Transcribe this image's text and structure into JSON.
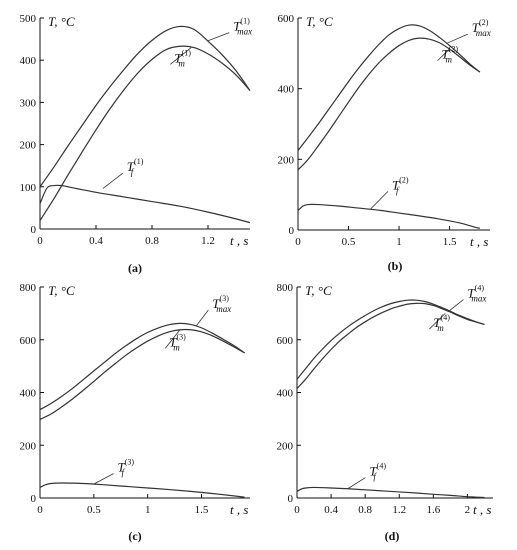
{
  "chart_data": [
    {
      "type": "line",
      "caption": "(a)",
      "ylabel": "T, °C",
      "xlabel": "t , s",
      "xlim": [
        0,
        1.5
      ],
      "ylim": [
        0,
        500
      ],
      "xticks": [
        0,
        0.4,
        0.8,
        1.2
      ],
      "xtick_labels": [
        "0",
        "0.4",
        "0.8",
        "1.2"
      ],
      "yticks": [
        0,
        100,
        200,
        300,
        400,
        500
      ],
      "ytick_labels": [
        "0",
        "100",
        "200",
        "300",
        "400",
        "500"
      ],
      "series": [
        {
          "name": "T_max^(1)",
          "base": "T",
          "sub": "max",
          "sup": "(1)",
          "x": [
            0,
            0.1,
            0.2,
            0.3,
            0.4,
            0.5,
            0.6,
            0.7,
            0.8,
            0.9,
            1.0,
            1.1,
            1.2,
            1.3,
            1.4,
            1.5
          ],
          "y": [
            100,
            147,
            197,
            245,
            293,
            337,
            378,
            416,
            447,
            470,
            480,
            473,
            445,
            413,
            375,
            328
          ]
        },
        {
          "name": "T_m^(1)",
          "base": "T",
          "sub": "m",
          "sup": "(1)",
          "x": [
            0,
            0.1,
            0.2,
            0.3,
            0.4,
            0.5,
            0.6,
            0.7,
            0.8,
            0.9,
            1.0,
            1.1,
            1.2,
            1.3,
            1.4,
            1.5
          ],
          "y": [
            20,
            72,
            128,
            182,
            235,
            285,
            330,
            370,
            402,
            425,
            433,
            430,
            415,
            393,
            365,
            328
          ]
        },
        {
          "name": "T_f^(1)",
          "base": "T",
          "sub": "f",
          "sup": "(1)",
          "x": [
            0,
            0.05,
            0.1,
            0.15,
            0.2,
            0.4,
            0.6,
            0.8,
            1.0,
            1.2,
            1.4,
            1.5
          ],
          "y": [
            60,
            97,
            103,
            103,
            100,
            87,
            76,
            65,
            54,
            40,
            24,
            15
          ]
        }
      ],
      "annotations": [
        {
          "series": 0,
          "label_x": 1.38,
          "label_y": 470,
          "point_x": 1.2,
          "point_y": 446
        },
        {
          "series": 1,
          "label_x": 0.96,
          "label_y": 395,
          "point_x": 1.08,
          "point_y": 430
        },
        {
          "series": 2,
          "label_x": 0.62,
          "label_y": 137,
          "point_x": 0.45,
          "point_y": 96
        }
      ]
    },
    {
      "type": "line",
      "caption": "(b)",
      "ylabel": "T, °C",
      "xlabel": "t , s",
      "xlim": [
        0,
        1.9
      ],
      "ylim": [
        0,
        600
      ],
      "xticks": [
        0,
        0.5,
        1,
        1.5
      ],
      "xtick_labels": [
        "0",
        "0.5",
        "1",
        "1.5"
      ],
      "yticks": [
        0,
        200,
        400,
        600
      ],
      "ytick_labels": [
        "0",
        "200",
        "400",
        "600"
      ],
      "series": [
        {
          "name": "T_max^(2)",
          "base": "T",
          "sub": "max",
          "sup": "(2)",
          "x": [
            0,
            0.1,
            0.2,
            0.3,
            0.4,
            0.5,
            0.6,
            0.7,
            0.8,
            0.9,
            1.0,
            1.1,
            1.2,
            1.3,
            1.4,
            1.5,
            1.6,
            1.7,
            1.8
          ],
          "y": [
            225,
            262,
            300,
            340,
            380,
            420,
            458,
            493,
            525,
            552,
            570,
            580,
            578,
            565,
            545,
            522,
            497,
            470,
            447
          ]
        },
        {
          "name": "T_m^(2)",
          "base": "T",
          "sub": "m",
          "sup": "(2)",
          "x": [
            0,
            0.1,
            0.2,
            0.3,
            0.4,
            0.5,
            0.6,
            0.7,
            0.8,
            0.9,
            1.0,
            1.1,
            1.2,
            1.3,
            1.4,
            1.5,
            1.6,
            1.7,
            1.8
          ],
          "y": [
            170,
            200,
            238,
            278,
            320,
            362,
            403,
            440,
            473,
            500,
            522,
            537,
            543,
            540,
            530,
            512,
            490,
            467,
            447
          ]
        },
        {
          "name": "T_f^(2)",
          "base": "T",
          "sub": "f",
          "sup": "(2)",
          "x": [
            0,
            0.05,
            0.1,
            0.2,
            0.4,
            0.6,
            0.8,
            1.0,
            1.2,
            1.4,
            1.6,
            1.75,
            1.8
          ],
          "y": [
            55,
            68,
            72,
            72,
            68,
            62,
            56,
            48,
            40,
            31,
            20,
            8,
            5
          ]
        }
      ],
      "annotations": [
        {
          "series": 0,
          "label_x": 1.72,
          "label_y": 560,
          "point_x": 1.47,
          "point_y": 528
        },
        {
          "series": 1,
          "label_x": 1.42,
          "label_y": 485,
          "point_x": 1.5,
          "point_y": 512
        },
        {
          "series": 2,
          "label_x": 0.93,
          "label_y": 115,
          "point_x": 0.72,
          "point_y": 60
        }
      ]
    },
    {
      "type": "line",
      "caption": "(c)",
      "ylabel": "T, °C",
      "xlabel": "t , s",
      "xlim": [
        0,
        1.95
      ],
      "ylim": [
        0,
        800
      ],
      "xticks": [
        0,
        0.5,
        1,
        1.5
      ],
      "xtick_labels": [
        "0",
        "0.5",
        "1",
        "1.5"
      ],
      "yticks": [
        0,
        200,
        400,
        600,
        800
      ],
      "ytick_labels": [
        "0",
        "200",
        "400",
        "600",
        "800"
      ],
      "series": [
        {
          "name": "T_max^(3)",
          "base": "T",
          "sub": "max",
          "sup": "(3)",
          "x": [
            0,
            0.1,
            0.2,
            0.3,
            0.4,
            0.5,
            0.6,
            0.7,
            0.8,
            0.9,
            1.0,
            1.1,
            1.2,
            1.3,
            1.4,
            1.5,
            1.6,
            1.7,
            1.8,
            1.9
          ],
          "y": [
            335,
            358,
            385,
            415,
            448,
            482,
            515,
            548,
            578,
            605,
            628,
            645,
            657,
            662,
            658,
            645,
            625,
            602,
            578,
            550
          ]
        },
        {
          "name": "T_m^(3)",
          "base": "T",
          "sub": "m",
          "sup": "(3)",
          "x": [
            0,
            0.1,
            0.2,
            0.3,
            0.4,
            0.5,
            0.6,
            0.7,
            0.8,
            0.9,
            1.0,
            1.1,
            1.2,
            1.3,
            1.4,
            1.5,
            1.6,
            1.7,
            1.8,
            1.9
          ],
          "y": [
            298,
            318,
            345,
            375,
            408,
            442,
            477,
            510,
            542,
            570,
            595,
            615,
            630,
            638,
            638,
            630,
            615,
            595,
            573,
            550
          ]
        },
        {
          "name": "T_f^(3)",
          "base": "T",
          "sub": "f",
          "sup": "(3)",
          "x": [
            0,
            0.05,
            0.1,
            0.2,
            0.4,
            0.6,
            0.8,
            1.0,
            1.2,
            1.4,
            1.6,
            1.8,
            1.9
          ],
          "y": [
            40,
            50,
            55,
            57,
            55,
            50,
            44,
            38,
            32,
            25,
            17,
            8,
            3
          ]
        }
      ],
      "annotations": [
        {
          "series": 0,
          "label_x": 1.6,
          "label_y": 720,
          "point_x": 1.45,
          "point_y": 652
        },
        {
          "series": 1,
          "label_x": 1.2,
          "label_y": 575,
          "point_x": 1.3,
          "point_y": 638
        },
        {
          "series": 2,
          "label_x": 0.72,
          "label_y": 100,
          "point_x": 0.5,
          "point_y": 53
        }
      ]
    },
    {
      "type": "line",
      "caption": "(d)",
      "ylabel": "T, °C",
      "xlabel": "t , s",
      "xlim": [
        0,
        2.3
      ],
      "ylim": [
        0,
        800
      ],
      "xticks": [
        0,
        0.4,
        0.8,
        1.2,
        1.6,
        2
      ],
      "xtick_labels": [
        "0",
        "0.4",
        "0.8",
        "1.2",
        "1.6",
        "2"
      ],
      "yticks": [
        0,
        200,
        400,
        600,
        800
      ],
      "ytick_labels": [
        "0",
        "200",
        "400",
        "600",
        "800"
      ],
      "series": [
        {
          "name": "T_max^(4)",
          "base": "T",
          "sub": "max",
          "sup": "(4)",
          "x": [
            0,
            0.1,
            0.2,
            0.3,
            0.4,
            0.5,
            0.6,
            0.7,
            0.8,
            0.9,
            1.0,
            1.1,
            1.2,
            1.3,
            1.4,
            1.5,
            1.6,
            1.7,
            1.8,
            1.9,
            2.0,
            2.1,
            2.2
          ],
          "y": [
            450,
            490,
            530,
            565,
            597,
            625,
            650,
            672,
            692,
            710,
            725,
            737,
            745,
            750,
            750,
            745,
            735,
            722,
            708,
            693,
            680,
            668,
            658
          ]
        },
        {
          "name": "T_m^(4)",
          "base": "T",
          "sub": "m",
          "sup": "(4)",
          "x": [
            0,
            0.1,
            0.2,
            0.3,
            0.4,
            0.5,
            0.6,
            0.7,
            0.8,
            0.9,
            1.0,
            1.1,
            1.2,
            1.3,
            1.4,
            1.5,
            1.6,
            1.7,
            1.8,
            1.9,
            2.0,
            2.1,
            2.2
          ],
          "y": [
            415,
            450,
            490,
            528,
            563,
            595,
            622,
            647,
            668,
            687,
            703,
            717,
            727,
            735,
            738,
            737,
            730,
            718,
            705,
            690,
            677,
            667,
            658
          ]
        },
        {
          "name": "T_f^(4)",
          "base": "T",
          "sub": "f",
          "sup": "(4)",
          "x": [
            0,
            0.05,
            0.1,
            0.2,
            0.4,
            0.6,
            0.8,
            1.0,
            1.2,
            1.4,
            1.6,
            1.8,
            2.0,
            2.2
          ],
          "y": [
            25,
            34,
            38,
            40,
            38,
            35,
            31,
            27,
            23,
            19,
            14,
            10,
            5,
            2
          ]
        }
      ],
      "annotations": [
        {
          "series": 0,
          "label_x": 2.0,
          "label_y": 760,
          "point_x": 1.78,
          "point_y": 708
        },
        {
          "series": 1,
          "label_x": 1.6,
          "label_y": 648,
          "point_x": 1.74,
          "point_y": 700
        },
        {
          "series": 2,
          "label_x": 0.85,
          "label_y": 85,
          "point_x": 0.6,
          "point_y": 36
        }
      ]
    }
  ]
}
